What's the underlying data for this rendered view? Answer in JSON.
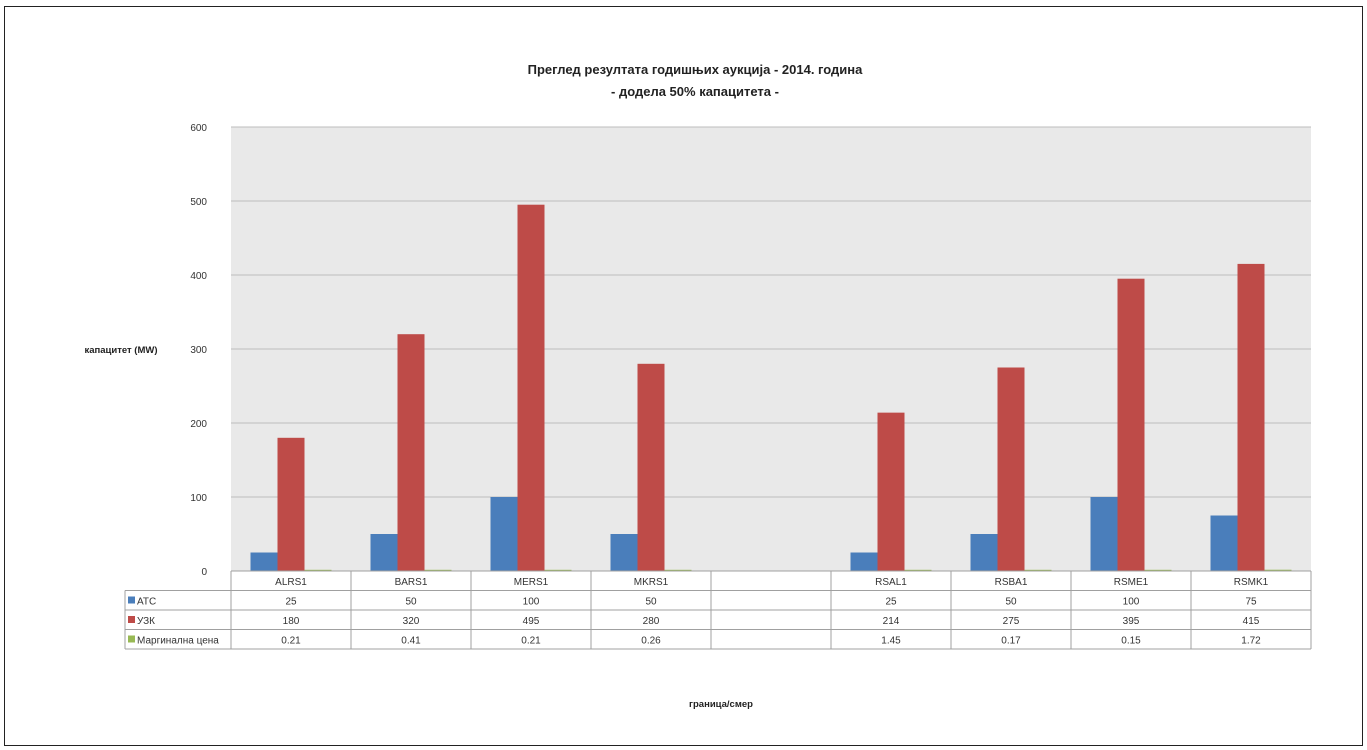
{
  "chart_data": {
    "type": "bar",
    "title": "Преглед резултата годишњих аукција - 2014. година",
    "subtitle": "- додела 50% капацитета -",
    "ylabel": "капацитет (MW)",
    "xlabel": "граница/смер",
    "ylim": [
      0,
      600
    ],
    "yticks": [
      0,
      100,
      200,
      300,
      400,
      500,
      600
    ],
    "grid": true,
    "categories": [
      "ALRS1",
      "BARS1",
      "MERS1",
      "MKRS1",
      "",
      "RSAL1",
      "RSBA1",
      "RSME1",
      "RSMK1"
    ],
    "series": [
      {
        "name": "АТС",
        "color": "#4a7ebb",
        "values": [
          25,
          50,
          100,
          50,
          null,
          25,
          50,
          100,
          75
        ],
        "labels": [
          "25",
          "50",
          "100",
          "50",
          "",
          "25",
          "50",
          "100",
          "75"
        ]
      },
      {
        "name": "УЗК",
        "color": "#be4b48",
        "values": [
          180,
          320,
          495,
          280,
          null,
          214,
          275,
          395,
          415
        ],
        "labels": [
          "180",
          "320",
          "495",
          "280",
          "",
          "214",
          "275",
          "395",
          "415"
        ]
      },
      {
        "name": "Маргинална цена",
        "color": "#98b954",
        "values": [
          0.21,
          0.41,
          0.21,
          0.26,
          null,
          1.45,
          0.17,
          0.15,
          1.72
        ],
        "labels": [
          "0.21",
          "0.41",
          "0.21",
          "0.26",
          "",
          "1.45",
          "0.17",
          "0.15",
          "1.72"
        ]
      }
    ]
  }
}
